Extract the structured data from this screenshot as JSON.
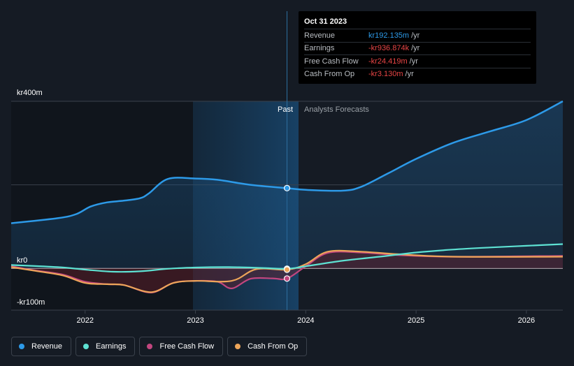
{
  "chart_data": {
    "type": "line",
    "y_unit_prefix": "kr",
    "y_unit_suffix": "m",
    "ylim": [
      -100,
      400
    ],
    "y_ticks": [
      {
        "value": 400,
        "label": "kr400m"
      },
      {
        "value": 0,
        "label": "kr0"
      },
      {
        "value": -100,
        "label": "-kr100m"
      }
    ],
    "xlim": [
      2021.33,
      2026.33
    ],
    "x_ticks": [
      {
        "value": 2022,
        "label": "2022"
      },
      {
        "value": 2023,
        "label": "2023"
      },
      {
        "value": 2024,
        "label": "2024"
      },
      {
        "value": 2025,
        "label": "2025"
      },
      {
        "value": 2026,
        "label": "2026"
      }
    ],
    "divider_x": 2023.83,
    "past_label": "Past",
    "forecast_label": "Analysts Forecasts",
    "series": [
      {
        "name": "Revenue",
        "color": "#2d9ae8",
        "fill": true,
        "points": [
          [
            2021.33,
            108
          ],
          [
            2021.75,
            120
          ],
          [
            2021.92,
            130
          ],
          [
            2022.05,
            148
          ],
          [
            2022.2,
            158
          ],
          [
            2022.35,
            162
          ],
          [
            2022.5,
            168
          ],
          [
            2022.58,
            180
          ],
          [
            2022.75,
            214
          ],
          [
            2023.0,
            215
          ],
          [
            2023.2,
            212
          ],
          [
            2023.5,
            200
          ],
          [
            2023.83,
            192
          ],
          [
            2024.0,
            188
          ],
          [
            2024.33,
            186
          ],
          [
            2024.5,
            195
          ],
          [
            2024.75,
            228
          ],
          [
            2025.0,
            262
          ],
          [
            2025.33,
            300
          ],
          [
            2025.67,
            328
          ],
          [
            2026.0,
            355
          ],
          [
            2026.33,
            400
          ]
        ],
        "highlight": [
          2023.83,
          192.135
        ]
      },
      {
        "name": "Earnings",
        "color": "#5ee2d3",
        "fill": false,
        "points": [
          [
            2021.33,
            8
          ],
          [
            2021.75,
            3
          ],
          [
            2022.0,
            -3
          ],
          [
            2022.25,
            -8
          ],
          [
            2022.5,
            -7
          ],
          [
            2022.75,
            -1
          ],
          [
            2023.0,
            2
          ],
          [
            2023.3,
            3
          ],
          [
            2023.6,
            1
          ],
          [
            2023.83,
            -1
          ],
          [
            2024.0,
            5
          ],
          [
            2024.33,
            18
          ],
          [
            2024.67,
            28
          ],
          [
            2025.0,
            38
          ],
          [
            2025.33,
            45
          ],
          [
            2025.67,
            50
          ],
          [
            2026.0,
            54
          ],
          [
            2026.33,
            58
          ]
        ],
        "highlight": [
          2023.83,
          -0.937
        ]
      },
      {
        "name": "Free Cash Flow",
        "color": "#c2467f",
        "fill": false,
        "points": [
          [
            2021.33,
            5
          ],
          [
            2021.55,
            -5
          ],
          [
            2021.8,
            -15
          ],
          [
            2022.0,
            -32
          ],
          [
            2022.2,
            -38
          ],
          [
            2022.35,
            -40
          ],
          [
            2022.6,
            -58
          ],
          [
            2022.8,
            -35
          ],
          [
            2023.0,
            -30
          ],
          [
            2023.2,
            -32
          ],
          [
            2023.33,
            -48
          ],
          [
            2023.5,
            -25
          ],
          [
            2023.7,
            -24
          ],
          [
            2023.83,
            -24.4
          ],
          [
            2024.0,
            5
          ],
          [
            2024.2,
            37
          ],
          [
            2024.5,
            38
          ],
          [
            2024.83,
            32
          ],
          [
            2025.33,
            28
          ],
          [
            2026.33,
            30
          ]
        ],
        "highlight": [
          2023.83,
          -24.419
        ]
      },
      {
        "name": "Cash From Op",
        "color": "#eda559",
        "fill": false,
        "points": [
          [
            2021.33,
            3
          ],
          [
            2021.55,
            -6
          ],
          [
            2021.8,
            -17
          ],
          [
            2022.0,
            -35
          ],
          [
            2022.2,
            -38
          ],
          [
            2022.35,
            -40
          ],
          [
            2022.6,
            -57
          ],
          [
            2022.8,
            -35
          ],
          [
            2023.0,
            -30
          ],
          [
            2023.33,
            -30
          ],
          [
            2023.55,
            -2
          ],
          [
            2023.83,
            -3.1
          ],
          [
            2024.0,
            10
          ],
          [
            2024.2,
            40
          ],
          [
            2024.5,
            40
          ],
          [
            2024.83,
            34
          ],
          [
            2025.33,
            28
          ],
          [
            2026.33,
            28
          ]
        ],
        "highlight": [
          2023.83,
          -3.13
        ]
      }
    ]
  },
  "tooltip": {
    "date": "Oct 31 2023",
    "rows": [
      {
        "label": "Revenue",
        "value": "kr192.135m",
        "color": "#2d9ae8",
        "unit": "/yr"
      },
      {
        "label": "Earnings",
        "value": "-kr936.874k",
        "color": "#e84545",
        "unit": "/yr"
      },
      {
        "label": "Free Cash Flow",
        "value": "-kr24.419m",
        "color": "#e84545",
        "unit": "/yr"
      },
      {
        "label": "Cash From Op",
        "value": "-kr3.130m",
        "color": "#e84545",
        "unit": "/yr"
      }
    ]
  },
  "legend": [
    {
      "label": "Revenue",
      "color": "#2d9ae8"
    },
    {
      "label": "Earnings",
      "color": "#5ee2d3"
    },
    {
      "label": "Free Cash Flow",
      "color": "#c2467f"
    },
    {
      "label": "Cash From Op",
      "color": "#eda559"
    }
  ]
}
